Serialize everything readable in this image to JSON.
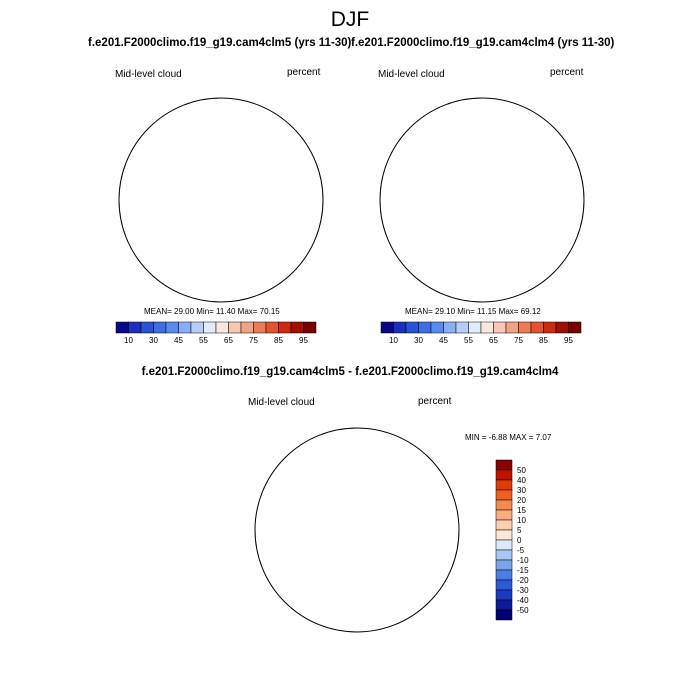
{
  "season": "DJF",
  "panels": [
    {
      "run_title": "f.e201.F2000climo.f19_g19.cam4clm5 (yrs 11-30)",
      "variable": "Mid-level cloud",
      "units": "percent",
      "stats": "MEAN=  29.00  Min=  11.40  Max=  70.15"
    },
    {
      "run_title": "f.e201.F2000climo.f19_g19.cam4clm4 (yrs 11-30)",
      "variable": "Mid-level cloud",
      "units": "percent",
      "stats": "MEAN=  29.10  Min=  11.15  Max=  69.12"
    }
  ],
  "colorbar": {
    "labels": [
      "10",
      "30",
      "45",
      "55",
      "65",
      "75",
      "85",
      "95"
    ],
    "colors": [
      "#08088a",
      "#1a2fbf",
      "#2a52d8",
      "#3d6ce6",
      "#5a8af0",
      "#88aef5",
      "#b7cdf8",
      "#e0ebfb",
      "#fde6df",
      "#f8c6b3",
      "#f3a385",
      "#ec7b56",
      "#e4532d",
      "#cc2a0f",
      "#a30d06",
      "#7a0000"
    ]
  },
  "difference": {
    "title": "f.e201.F2000climo.f19_g19.cam4clm5 - f.e201.F2000climo.f19_g19.cam4clm4",
    "variable": "Mid-level cloud",
    "units": "percent",
    "stats": "MIN =  -6.88 MAX =   7.07",
    "colorbar_labels": [
      "50",
      "40",
      "30",
      "20",
      "15",
      "10",
      "5",
      "0",
      "-5",
      "-10",
      "-15",
      "-20",
      "-30",
      "-40",
      "-50"
    ],
    "colorbar_colors": [
      "#8b0000",
      "#c11200",
      "#e33a0a",
      "#f0601e",
      "#f58a4d",
      "#f8ad7f",
      "#fbd1b4",
      "#fde8d6",
      "#dbeafa",
      "#a9c9f4",
      "#7aa5ee",
      "#4a7de6",
      "#2c5bd9",
      "#1a3bbf",
      "#0a1a99",
      "#00006e"
    ]
  }
}
